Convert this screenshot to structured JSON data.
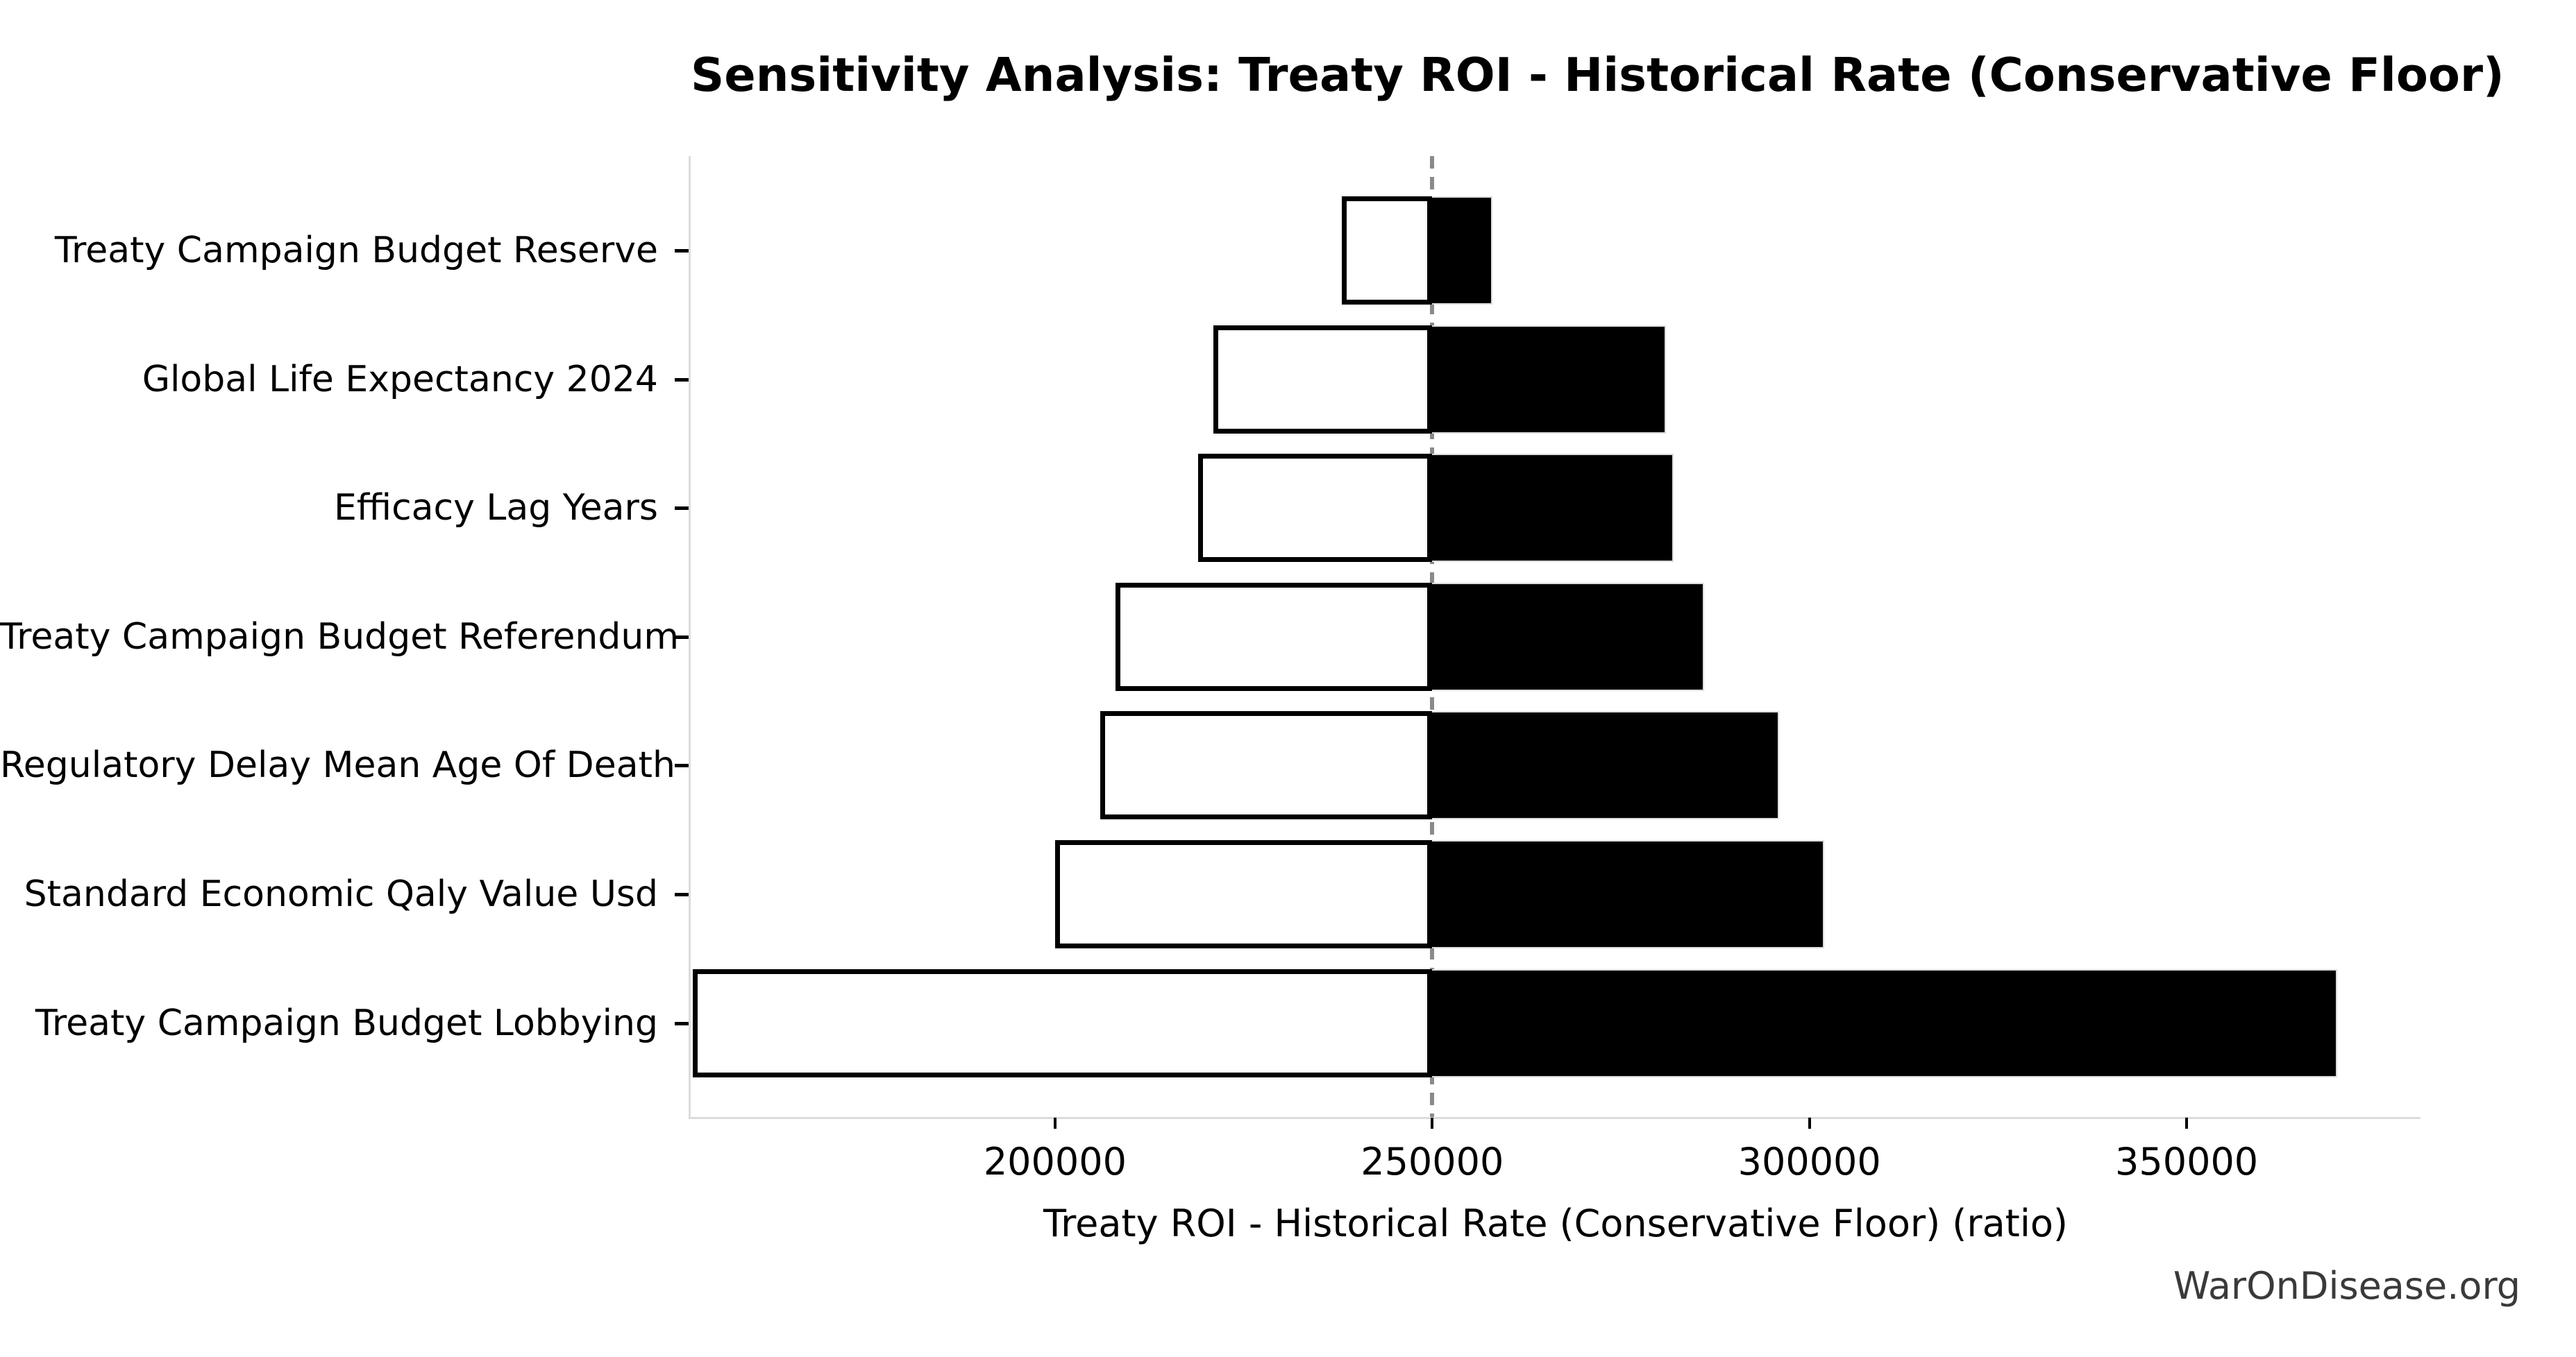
{
  "watermark": "WarOnDisease.org",
  "colors": {
    "background": "#ffffff",
    "bar_high_fill": "#000000",
    "bar_low_fill": "#ffffff",
    "bar_low_edge": "#000000",
    "bar_outline": "#dcdcdc",
    "baseline_dash": "#8a8a8a",
    "spine": "#dcdcdc",
    "tick_mark": "#000000",
    "text": "#000000",
    "watermark_text": "#3a3a3a"
  },
  "chart_data": {
    "type": "bar",
    "variant": "tornado-sensitivity",
    "orientation": "horizontal",
    "title": "Sensitivity Analysis: Treaty ROI - Historical Rate (Conservative Floor)",
    "xlabel": "Treaty ROI - Historical Rate (Conservative Floor) (ratio)",
    "ylabel": "",
    "baseline": 250000,
    "xlim": [
      151700,
      381000
    ],
    "x_ticks": [
      200000,
      250000,
      300000,
      350000
    ],
    "grid": false,
    "legend": "none",
    "categories": [
      "Treaty Campaign Budget Reserve",
      "Global Life Expectancy 2024",
      "Efficacy Lag Years",
      "Treaty Campaign Budget Referendum",
      "Regulatory Delay Mean Age Of Death",
      "Standard Economic Qaly Value Usd",
      "Treaty Campaign Budget Lobbying"
    ],
    "series": [
      {
        "name": "low_estimate",
        "fill": "#ffffff",
        "values": [
          238000,
          221000,
          219000,
          208000,
          206000,
          200000,
          152000
        ]
      },
      {
        "name": "high_estimate",
        "fill": "#000000",
        "values": [
          258000,
          281000,
          282000,
          286000,
          296000,
          302000,
          370000
        ]
      }
    ]
  }
}
